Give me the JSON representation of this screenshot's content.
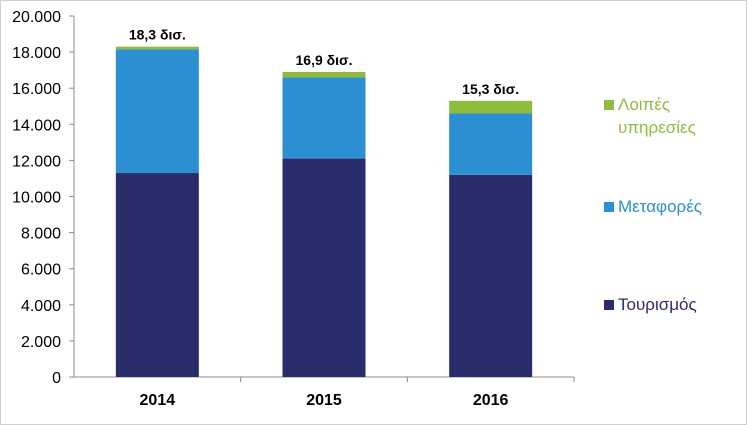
{
  "chart_data": {
    "type": "bar",
    "stacked": true,
    "categories": [
      "2014",
      "2015",
      "2016"
    ],
    "series": [
      {
        "name": "Τουρισμός",
        "color": "#2a2d6b",
        "values": [
          11300,
          12100,
          11200
        ]
      },
      {
        "name": "Μεταφορές",
        "color": "#2b8fd2",
        "values": [
          6850,
          4500,
          3400
        ]
      },
      {
        "name": "Λοιπές υπηρεσίες",
        "color": "#8fbc3f",
        "values": [
          150,
          300,
          700
        ]
      }
    ],
    "totals_labels": [
      "18,3 δισ.",
      "16,9 δισ.",
      "15,3 δισ."
    ],
    "ylim": [
      0,
      20000
    ],
    "yticks": [
      0,
      2000,
      4000,
      6000,
      8000,
      10000,
      12000,
      14000,
      16000,
      18000,
      20000
    ],
    "ytick_labels": [
      "0",
      "2.000",
      "4.000",
      "6.000",
      "8.000",
      "10.000",
      "12.000",
      "14.000",
      "16.000",
      "18.000",
      "20.000"
    ],
    "legend_position": "right",
    "legend_order": [
      "Λοιπές υπηρεσίες",
      "Μεταφορές",
      "Τουρισμός"
    ],
    "legend_label_lines": {
      "Λοιπές υπηρεσίες": [
        "Λοιπές",
        "υπηρεσίες"
      ],
      "Μεταφορές": [
        "Μεταφορές"
      ],
      "Τουρισμός": [
        "Τουρισμός"
      ]
    },
    "grid": false
  }
}
